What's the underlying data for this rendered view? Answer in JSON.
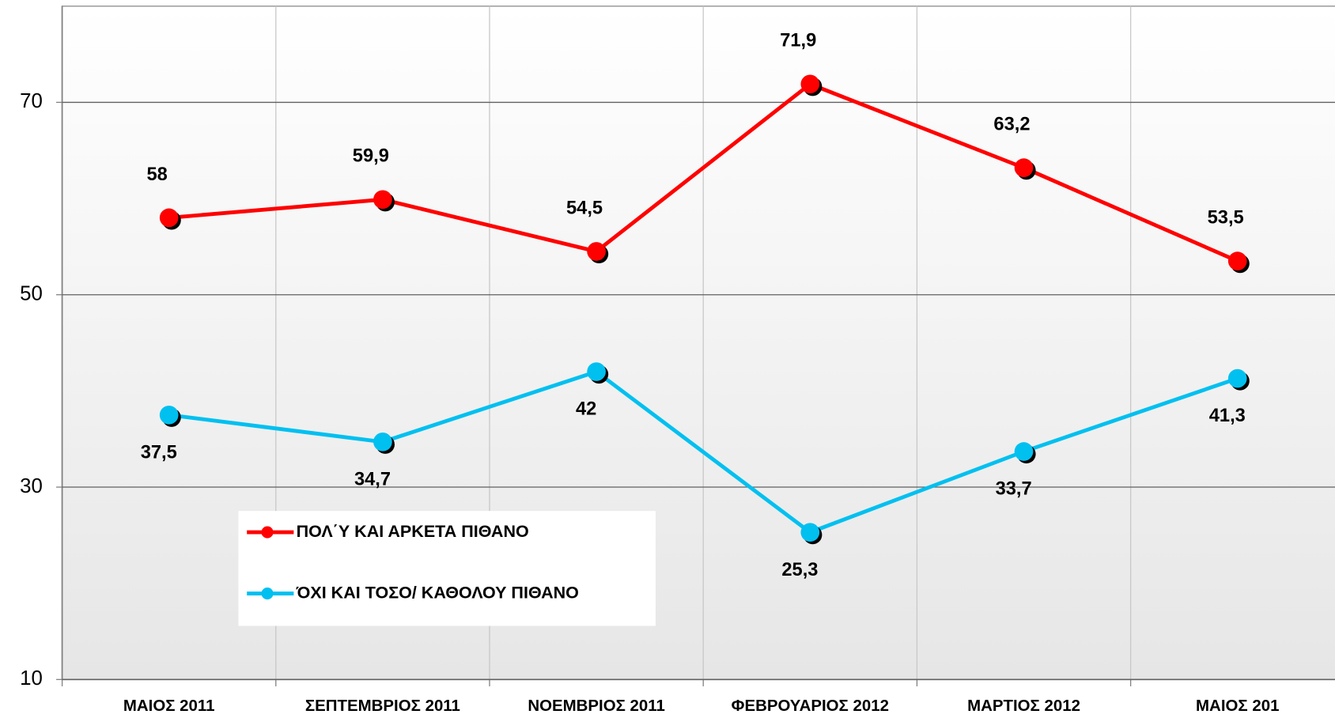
{
  "chart_data": {
    "type": "line",
    "categories": [
      "ΜΑΙΟΣ 2011",
      "ΣΕΠΤΕΜΒΡΙΟΣ 2011",
      "ΝΟΕΜΒΡΙΟΣ 2011",
      "ΦΕΒΡΟΥΑΡΙΟΣ 2012",
      "ΜΑΡΤΙΟΣ  2012",
      "ΜΑΙΟΣ 201"
    ],
    "series": [
      {
        "name": "ΠΟΛ΄Υ ΚΑΙ ΑΡΚΕΤΑ ΠΙΘΑΝΟ",
        "color": "#ff0000",
        "values": [
          58,
          59.9,
          54.5,
          71.9,
          63.2,
          53.5
        ],
        "value_labels": [
          "58",
          "59,9",
          "54,5",
          "71,9",
          "63,2",
          "53,5"
        ]
      },
      {
        "name": "ΌΧΙ ΚΑΙ ΤΟΣΟ/ ΚΑΘΟΛΟΥ ΠΙΘΑΝΟ",
        "color": "#00c0f0",
        "values": [
          37.5,
          34.7,
          42,
          25.3,
          33.7,
          41.3
        ],
        "value_labels": [
          "37,5",
          "34,7",
          "42",
          "25,3",
          "33,7",
          "41,3"
        ]
      }
    ],
    "ylim": [
      10,
      80
    ],
    "yticks": [
      10,
      30,
      50,
      70
    ],
    "grid": true
  }
}
